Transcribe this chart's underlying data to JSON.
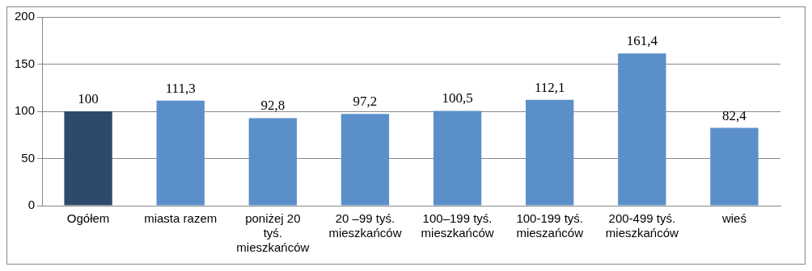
{
  "chart_data": {
    "type": "bar",
    "categories": [
      "Ogółem",
      "miasta razem",
      "poniżej 20 tyś. mieszkańców",
      "20 –99 tyś. mieszkańców",
      "100–199 tyś. mieszkańców",
      "100-199 tyś. mieszańców",
      "200-499 tyś. mieszkańców",
      "wieś"
    ],
    "values": [
      100,
      111.3,
      92.8,
      97.2,
      100.5,
      112.1,
      161.4,
      82.4
    ],
    "value_labels": [
      "100",
      "111,3",
      "92,8",
      "97,2",
      "100,5",
      "112,1",
      "161,4",
      "82,4"
    ],
    "colors": [
      "#2e4a6b",
      "#5b8fc9",
      "#5b8fc9",
      "#5b8fc9",
      "#5b8fc9",
      "#5b8fc9",
      "#5b8fc9",
      "#5b8fc9"
    ],
    "ylim": [
      0,
      200
    ],
    "yticks": [
      0,
      50,
      100,
      150,
      200
    ],
    "grid": "y",
    "legend": false
  }
}
